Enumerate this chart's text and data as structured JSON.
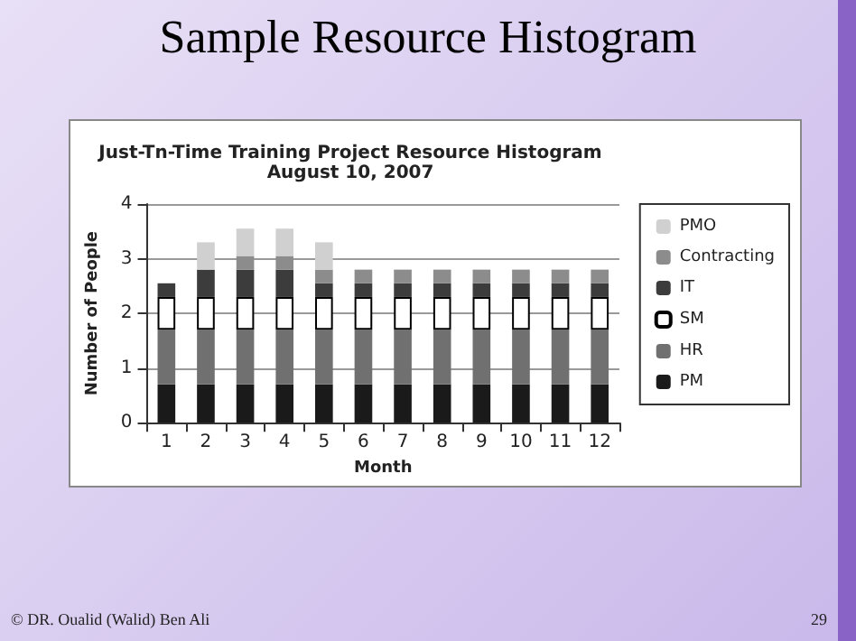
{
  "chart_data": {
    "type": "bar",
    "title": "Sample Resource Histogram",
    "subtitle": "Just-Tn-Time Training Project Resource Histogram",
    "annotations": [
      "August 10, 2007",
      "© DR. Oualid (Walid) Ben Ali",
      "29"
    ],
    "xlabel": "Month",
    "ylabel": "Number of People",
    "categories": [
      "1",
      "2",
      "3",
      "4",
      "5",
      "6",
      "7",
      "8",
      "9",
      "10",
      "11",
      "12"
    ],
    "stacked": true,
    "ylim": [
      0,
      4
    ],
    "yticks": [
      0,
      1,
      2,
      3,
      4
    ],
    "grid": "y",
    "legend": "right",
    "series": [
      {
        "name": "PM",
        "color": "#1a1a1a",
        "values": [
          0.7,
          0.7,
          0.7,
          0.7,
          0.7,
          0.7,
          0.7,
          0.7,
          0.7,
          0.7,
          0.7,
          0.7
        ]
      },
      {
        "name": "HR",
        "color": "#707070",
        "values": [
          1.0,
          1.0,
          1.0,
          1.0,
          1.0,
          1.0,
          1.0,
          1.0,
          1.0,
          1.0,
          1.0,
          1.0
        ]
      },
      {
        "name": "SM",
        "color": "#ffffff",
        "values": [
          0.6,
          0.6,
          0.6,
          0.6,
          0.6,
          0.6,
          0.6,
          0.6,
          0.6,
          0.6,
          0.6,
          0.6
        ]
      },
      {
        "name": "IT",
        "color": "#3c3c3c",
        "values": [
          0.25,
          0.5,
          0.5,
          0.5,
          0.25,
          0.25,
          0.25,
          0.25,
          0.25,
          0.25,
          0.25,
          0.25
        ]
      },
      {
        "name": "Contracting",
        "color": "#8c8c8c",
        "values": [
          0,
          0,
          0.25,
          0.25,
          0.25,
          0.25,
          0.25,
          0.25,
          0.25,
          0.25,
          0.25,
          0.25
        ]
      },
      {
        "name": "PMO",
        "color": "#d0d0d0",
        "values": [
          0,
          0.5,
          0.5,
          0.5,
          0.5,
          0,
          0,
          0,
          0,
          0,
          0,
          0
        ]
      }
    ]
  }
}
